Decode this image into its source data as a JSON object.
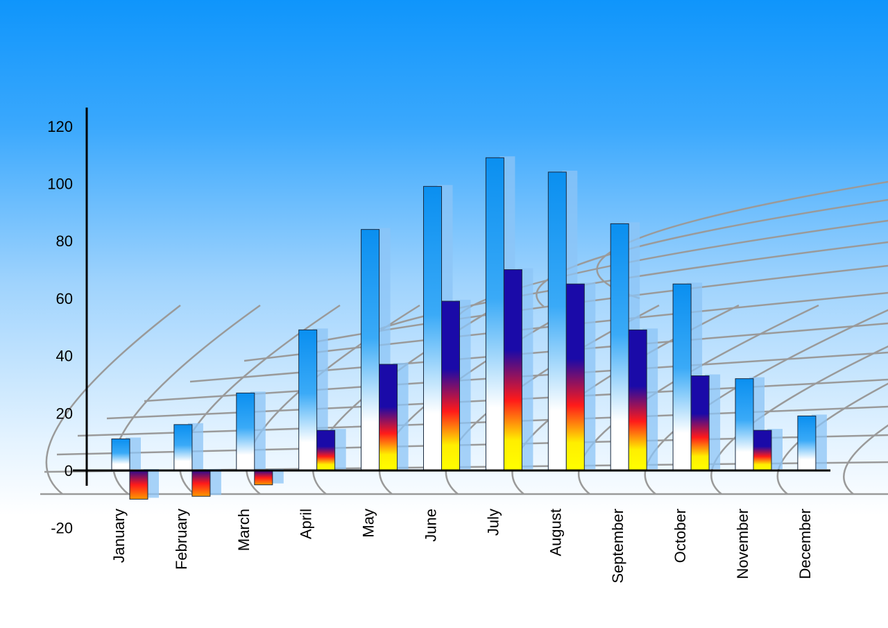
{
  "chart_data": {
    "type": "bar",
    "title": "",
    "xlabel": "",
    "ylabel": "",
    "ylim": [
      -20,
      120
    ],
    "yticks": [
      -20,
      0,
      20,
      40,
      60,
      80,
      100,
      120
    ],
    "categories": [
      "January",
      "February",
      "March",
      "April",
      "May",
      "June",
      "July",
      "August",
      "September",
      "October",
      "November",
      "December"
    ],
    "series": [
      {
        "values": [
          11,
          16,
          27,
          49,
          84,
          99,
          109,
          104,
          86,
          65,
          32,
          19
        ],
        "color": "#1a9cf5"
      },
      {
        "values": [
          -10,
          -9,
          -5,
          14,
          37,
          59,
          70,
          65,
          49,
          33,
          14,
          null
        ],
        "color": "#1a0aa8"
      }
    ],
    "grid": false,
    "style": "3d-perspective-floor"
  }
}
